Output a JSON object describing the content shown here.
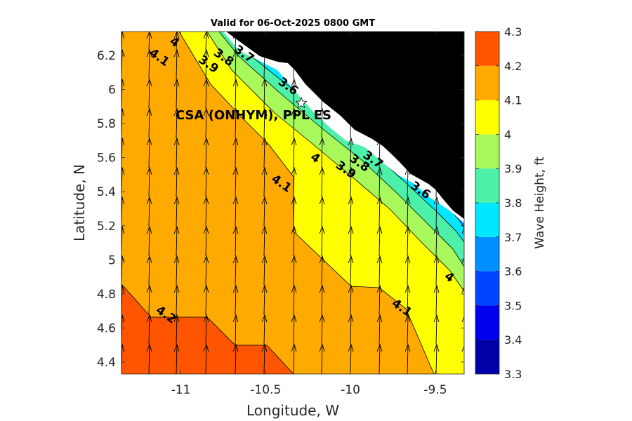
{
  "title": "Valid for 06-Oct-2025 0800 GMT",
  "map": {
    "station_label": "CSA (ONHYM), PPL ES",
    "station_marker": "star-icon",
    "land_color": "#000000",
    "coast_gap_color": "#ffffff"
  },
  "chart_data": {
    "type": "heatmap",
    "subtype": "filled-contour map with wave-direction arrows",
    "xlabel": "Longitude, W",
    "ylabel": "Latitude, N",
    "xlim": [
      -11.35,
      -9.33
    ],
    "ylim": [
      4.33,
      6.34
    ],
    "xticks": [
      -11,
      -10.5,
      -10,
      -9.5
    ],
    "xtick_labels": [
      "-11",
      "-10.5",
      "-10",
      "-9.5"
    ],
    "yticks": [
      4.4,
      4.6,
      4.8,
      5,
      5.2,
      5.4,
      5.6,
      5.8,
      6,
      6.2
    ],
    "ytick_labels": [
      "4.4",
      "4.6",
      "4.8",
      "5",
      "5.2",
      "5.4",
      "5.6",
      "5.8",
      "6",
      "6.2"
    ],
    "colorbar": {
      "label": "Wave Height, ft",
      "levels": [
        3.3,
        3.4,
        3.5,
        3.6,
        3.7,
        3.8,
        3.9,
        4.0,
        4.1,
        4.2,
        4.3
      ],
      "tick_labels": [
        "3.3",
        "3.4",
        "3.5",
        "3.6",
        "3.7",
        "3.8",
        "3.9",
        "4",
        "4.1",
        "4.2",
        "4.3"
      ],
      "colors": [
        "#0000a8",
        "#0000ee",
        "#0044ff",
        "#0090ff",
        "#00e8ff",
        "#4cf0a8",
        "#a8f85c",
        "#ffff00",
        "#ffaa00",
        "#ff5500"
      ]
    },
    "contour_labels": [
      {
        "text": "4",
        "lon": -11.05,
        "lat": 6.26
      },
      {
        "text": "4.1",
        "lon": -11.14,
        "lat": 6.17
      },
      {
        "text": "3.9",
        "lon": -10.85,
        "lat": 6.13
      },
      {
        "text": "3.8",
        "lon": -10.76,
        "lat": 6.17
      },
      {
        "text": "3.7",
        "lon": -10.64,
        "lat": 6.19
      },
      {
        "text": "3.6",
        "lon": -10.38,
        "lat": 6.0
      },
      {
        "text": "4",
        "lon": -10.22,
        "lat": 5.58
      },
      {
        "text": "4.1",
        "lon": -10.42,
        "lat": 5.43
      },
      {
        "text": "3.9",
        "lon": -10.04,
        "lat": 5.51
      },
      {
        "text": "3.8",
        "lon": -9.96,
        "lat": 5.55
      },
      {
        "text": "3.7",
        "lon": -9.88,
        "lat": 5.57
      },
      {
        "text": "3.6",
        "lon": -9.6,
        "lat": 5.39
      },
      {
        "text": "4",
        "lon": -9.43,
        "lat": 4.88
      },
      {
        "text": "4.1",
        "lon": -9.71,
        "lat": 4.7
      },
      {
        "text": "4.2",
        "lon": -11.1,
        "lat": 4.66
      }
    ],
    "station": {
      "lon": -10.29,
      "lat": 5.92
    },
    "arrow_direction": "north"
  }
}
